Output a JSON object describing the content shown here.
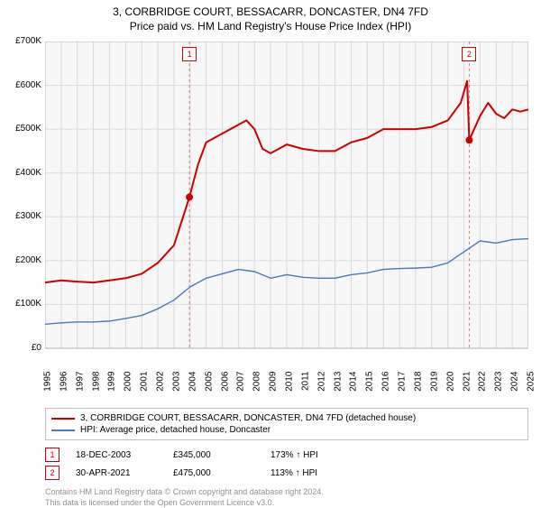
{
  "title": {
    "main": "3, CORBRIDGE COURT, BESSACARR, DONCASTER, DN4 7FD",
    "sub": "Price paid vs. HM Land Registry's House Price Index (HPI)",
    "main_fontsize": 12,
    "sub_fontsize": 12
  },
  "chart": {
    "type": "line",
    "background_color": "#f7f7f7",
    "grid_color": "#d8d8d8",
    "border_color": "#b0b0b0",
    "ylim": [
      0,
      700000
    ],
    "ytick_step": 100000,
    "yticks": [
      "£0",
      "£100K",
      "£200K",
      "£300K",
      "£400K",
      "£500K",
      "£600K",
      "£700K"
    ],
    "x_years": [
      1995,
      1996,
      1997,
      1998,
      1999,
      2000,
      2001,
      2002,
      2003,
      2004,
      2005,
      2006,
      2007,
      2008,
      2009,
      2010,
      2011,
      2012,
      2013,
      2014,
      2015,
      2016,
      2017,
      2018,
      2019,
      2020,
      2021,
      2022,
      2023,
      2024,
      2025
    ],
    "series": [
      {
        "name": "property",
        "color": "#cc0000",
        "width": 2,
        "data": [
          [
            1995,
            150000
          ],
          [
            1996,
            155000
          ],
          [
            1997,
            152000
          ],
          [
            1998,
            150000
          ],
          [
            1999,
            155000
          ],
          [
            2000,
            160000
          ],
          [
            2001,
            170000
          ],
          [
            2002,
            195000
          ],
          [
            2003,
            235000
          ],
          [
            2003.96,
            345000
          ],
          [
            2004.5,
            420000
          ],
          [
            2005,
            470000
          ],
          [
            2006,
            490000
          ],
          [
            2007,
            510000
          ],
          [
            2007.5,
            520000
          ],
          [
            2008,
            500000
          ],
          [
            2008.5,
            455000
          ],
          [
            2009,
            445000
          ],
          [
            2010,
            465000
          ],
          [
            2011,
            455000
          ],
          [
            2012,
            450000
          ],
          [
            2013,
            450000
          ],
          [
            2014,
            470000
          ],
          [
            2015,
            480000
          ],
          [
            2016,
            500000
          ],
          [
            2017,
            500000
          ],
          [
            2018,
            500000
          ],
          [
            2019,
            505000
          ],
          [
            2020,
            520000
          ],
          [
            2020.8,
            560000
          ],
          [
            2021.2,
            610000
          ],
          [
            2021.33,
            475000
          ],
          [
            2022,
            530000
          ],
          [
            2022.5,
            560000
          ],
          [
            2023,
            535000
          ],
          [
            2023.5,
            525000
          ],
          [
            2024,
            545000
          ],
          [
            2024.5,
            540000
          ],
          [
            2025,
            545000
          ]
        ]
      },
      {
        "name": "hpi",
        "color": "#4a7ab8",
        "width": 1.4,
        "data": [
          [
            1995,
            55000
          ],
          [
            1996,
            58000
          ],
          [
            1997,
            60000
          ],
          [
            1998,
            60000
          ],
          [
            1999,
            62000
          ],
          [
            2000,
            68000
          ],
          [
            2001,
            75000
          ],
          [
            2002,
            90000
          ],
          [
            2003,
            110000
          ],
          [
            2004,
            140000
          ],
          [
            2005,
            160000
          ],
          [
            2006,
            170000
          ],
          [
            2007,
            180000
          ],
          [
            2008,
            175000
          ],
          [
            2009,
            160000
          ],
          [
            2010,
            168000
          ],
          [
            2011,
            162000
          ],
          [
            2012,
            160000
          ],
          [
            2013,
            160000
          ],
          [
            2014,
            168000
          ],
          [
            2015,
            172000
          ],
          [
            2016,
            180000
          ],
          [
            2017,
            182000
          ],
          [
            2018,
            183000
          ],
          [
            2019,
            185000
          ],
          [
            2020,
            195000
          ],
          [
            2021,
            220000
          ],
          [
            2022,
            245000
          ],
          [
            2023,
            240000
          ],
          [
            2024,
            248000
          ],
          [
            2025,
            250000
          ]
        ]
      }
    ],
    "sales_markers": [
      {
        "n": "1",
        "x_year": 2003.96,
        "y_value": 345000
      },
      {
        "n": "2",
        "x_year": 2021.33,
        "y_value": 475000
      }
    ],
    "marker_color": "#cc0000",
    "dashed_color": "#cc8080"
  },
  "legend": {
    "items": [
      {
        "color": "#cc0000",
        "label": "3, CORBRIDGE COURT, BESSACARR, DONCASTER, DN4 7FD (detached house)"
      },
      {
        "color": "#4a7ab8",
        "label": "HPI: Average price, detached house, Doncaster"
      }
    ]
  },
  "sales": [
    {
      "n": "1",
      "date": "18-DEC-2003",
      "price": "£345,000",
      "pct": "173% ↑ HPI"
    },
    {
      "n": "2",
      "date": "30-APR-2021",
      "price": "£475,000",
      "pct": "113% ↑ HPI"
    }
  ],
  "footnote": {
    "line1": "Contains HM Land Registry data © Crown copyright and database right 2024.",
    "line2": "This data is licensed under the Open Government Licence v3.0."
  }
}
